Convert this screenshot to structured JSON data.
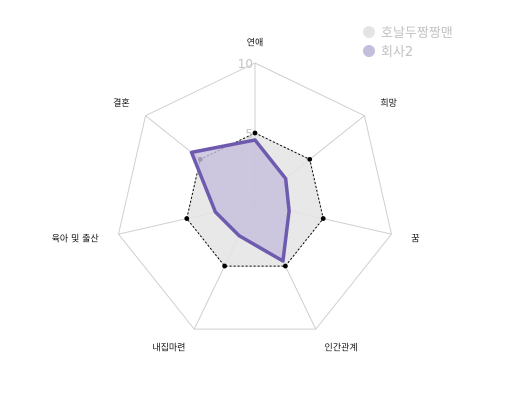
{
  "chart_data": {
    "type": "radar",
    "axes": [
      "연애",
      "희망",
      "꿈",
      "인간관계",
      "내집마련",
      "육아 및 출산",
      "결혼"
    ],
    "rlim": [
      0,
      10
    ],
    "rticks": [
      5,
      10
    ],
    "series": [
      {
        "name": "호날두짱짱맨",
        "values": [
          5,
          5,
          5,
          5,
          5,
          5,
          5
        ],
        "fill": "#e4e4e4",
        "line": "#000000"
      },
      {
        "name": "회사2",
        "values": [
          4.5,
          2.8,
          2.5,
          4.6,
          2.6,
          2.9,
          5.8
        ],
        "fill": "#c4bddb",
        "line": "#6e5aae"
      }
    ],
    "legend_position": "top-right"
  }
}
